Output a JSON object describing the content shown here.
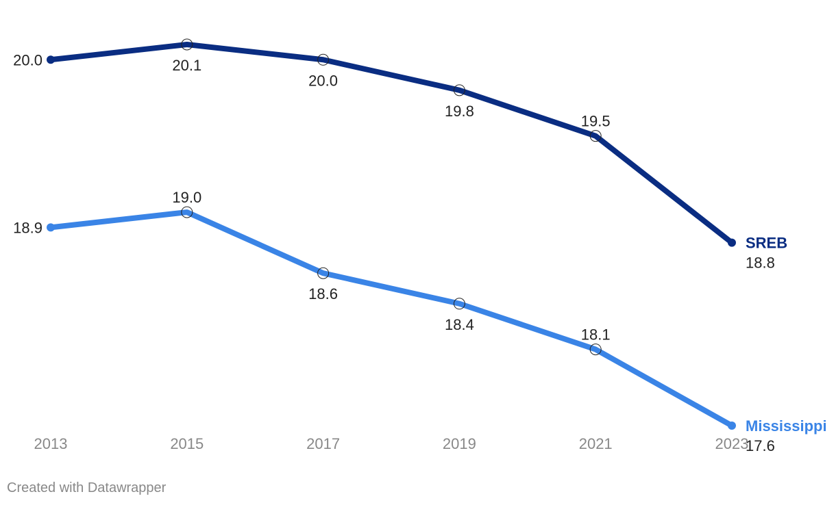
{
  "chart_data": {
    "type": "line",
    "x": [
      "2013",
      "2015",
      "2017",
      "2019",
      "2021",
      "2023"
    ],
    "ylim": [
      17.5,
      20.1
    ],
    "grid": false,
    "legend": "inline-right",
    "series": [
      {
        "name": "SREB",
        "color": "#0a2d82",
        "values": [
          20.0,
          20.1,
          20.0,
          19.8,
          19.5,
          18.8
        ],
        "labels": [
          "20.0",
          "20.1",
          "20.0",
          "19.8",
          "19.5",
          "18.8"
        ]
      },
      {
        "name": "Mississippi",
        "color": "#3a84e6",
        "values": [
          18.9,
          19.0,
          18.6,
          18.4,
          18.1,
          17.6
        ],
        "labels": [
          "18.9",
          "19.0",
          "18.6",
          "18.4",
          "18.1",
          "17.6"
        ]
      }
    ]
  },
  "footer": {
    "credit": "Created with Datawrapper"
  }
}
